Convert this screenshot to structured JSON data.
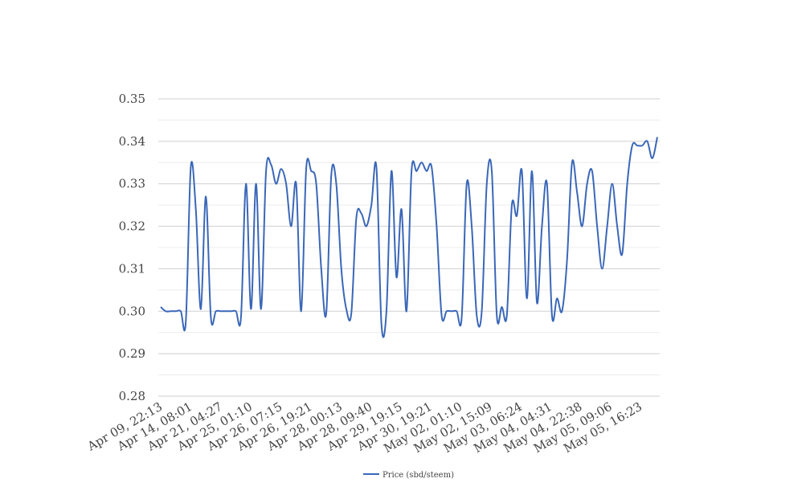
{
  "chart_data": {
    "type": "line",
    "title": "",
    "xlabel": "",
    "ylabel": "",
    "ylim": [
      0.28,
      0.35
    ],
    "y_ticks": [
      "0.35",
      "0.34",
      "0.33",
      "0.32",
      "0.31",
      "0.30",
      "0.29",
      "0.28"
    ],
    "y_tick_values": [
      0.35,
      0.34,
      0.33,
      0.32,
      0.31,
      0.3,
      0.29,
      0.28
    ],
    "x_tick_labels": [
      "Apr 09, 22:13",
      "Apr 14, 08:01",
      "Apr 21, 04:27",
      "Apr 25, 01:10",
      "Apr 26, 07:15",
      "Apr 26, 19:21",
      "Apr 28, 00:13",
      "Apr 28, 09:40",
      "Apr 29, 19:15",
      "Apr 30, 19:21",
      "May 02, 01:10",
      "May 02, 15:09",
      "May 03, 06:24",
      "May 04, 04:31",
      "May 04, 22:38",
      "May 05, 09:06",
      "May 05, 16:23"
    ],
    "grid": true,
    "legend_position": "bottom-center",
    "series": [
      {
        "name": "Price (sbd/steem)",
        "color": "#3a67b8",
        "values": [
          0.301,
          0.3,
          0.3,
          0.3,
          0.3,
          0.2975,
          0.334,
          0.324,
          0.3005,
          0.327,
          0.2985,
          0.3,
          0.3,
          0.3,
          0.3,
          0.3,
          0.2985,
          0.33,
          0.3005,
          0.33,
          0.3005,
          0.333,
          0.3345,
          0.33,
          0.3335,
          0.33,
          0.32,
          0.33,
          0.3,
          0.3335,
          0.333,
          0.33,
          0.31,
          0.2995,
          0.332,
          0.33,
          0.31,
          0.3005,
          0.2995,
          0.322,
          0.323,
          0.32,
          0.325,
          0.334,
          0.297,
          0.3,
          0.333,
          0.308,
          0.324,
          0.3,
          0.333,
          0.333,
          0.335,
          0.333,
          0.334,
          0.32,
          0.299,
          0.3,
          0.3,
          0.3,
          0.2985,
          0.33,
          0.32,
          0.299,
          0.3,
          0.33,
          0.333,
          0.299,
          0.301,
          0.299,
          0.325,
          0.3225,
          0.333,
          0.303,
          0.333,
          0.302,
          0.32,
          0.33,
          0.299,
          0.303,
          0.3,
          0.312,
          0.335,
          0.328,
          0.32,
          0.33,
          0.333,
          0.32,
          0.31,
          0.32,
          0.33,
          0.32,
          0.3135,
          0.33,
          0.339,
          0.339,
          0.339,
          0.34,
          0.336,
          0.341
        ]
      }
    ]
  }
}
